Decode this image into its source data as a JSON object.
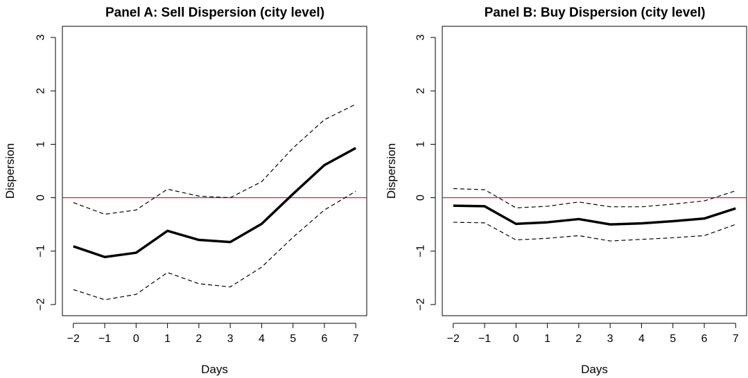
{
  "chart_data": [
    {
      "type": "line",
      "title": "Panel A: Sell Dispersion (city level)",
      "xlabel": "Days",
      "ylabel": "Dispersion",
      "x": [
        -2,
        -1,
        0,
        1,
        2,
        3,
        4,
        5,
        6,
        7
      ],
      "x_tick_labels": [
        "−2",
        "−1",
        "0",
        "1",
        "2",
        "3",
        "4",
        "5",
        "6",
        "7"
      ],
      "y_tick_values": [
        -2,
        -1,
        0,
        1,
        2,
        3
      ],
      "y_tick_labels": [
        "−2",
        "−1",
        "0",
        "1",
        "2",
        "3"
      ],
      "xlim": [
        -2,
        7
      ],
      "ylim": [
        -2,
        3
      ],
      "reference_line": {
        "y": 0,
        "color": "#e01010"
      },
      "series": [
        {
          "style": "solid-thick",
          "color": "#000000",
          "values": [
            -0.91,
            -1.11,
            -1.03,
            -0.62,
            -0.79,
            -0.83,
            -0.49,
            0.07,
            0.61,
            0.93
          ]
        },
        {
          "style": "dashed",
          "color": "#000000",
          "values": [
            -0.09,
            -0.31,
            -0.23,
            0.16,
            0.03,
            0.0,
            0.3,
            0.93,
            1.46,
            1.75
          ]
        },
        {
          "style": "dashed",
          "color": "#000000",
          "values": [
            -1.72,
            -1.91,
            -1.81,
            -1.4,
            -1.61,
            -1.67,
            -1.3,
            -0.74,
            -0.23,
            0.12
          ]
        }
      ]
    },
    {
      "type": "line",
      "title": "Panel B: Buy Dispersion (city level)",
      "xlabel": "Days",
      "ylabel": "Dispersion",
      "x": [
        -2,
        -1,
        0,
        1,
        2,
        3,
        4,
        5,
        6,
        7
      ],
      "x_tick_labels": [
        "−2",
        "−1",
        "0",
        "1",
        "2",
        "3",
        "4",
        "5",
        "6",
        "7"
      ],
      "y_tick_values": [
        -2,
        -1,
        0,
        1,
        2,
        3
      ],
      "y_tick_labels": [
        "−2",
        "−1",
        "0",
        "1",
        "2",
        "3"
      ],
      "xlim": [
        -2,
        7
      ],
      "ylim": [
        -2,
        3
      ],
      "reference_line": {
        "y": 0,
        "color": "#e01010"
      },
      "series": [
        {
          "style": "solid-thick",
          "color": "#000000",
          "values": [
            -0.15,
            -0.16,
            -0.49,
            -0.46,
            -0.4,
            -0.5,
            -0.48,
            -0.44,
            -0.39,
            -0.2
          ]
        },
        {
          "style": "dashed",
          "color": "#000000",
          "values": [
            0.17,
            0.15,
            -0.19,
            -0.16,
            -0.08,
            -0.17,
            -0.17,
            -0.12,
            -0.06,
            0.13
          ]
        },
        {
          "style": "dashed",
          "color": "#000000",
          "values": [
            -0.46,
            -0.47,
            -0.79,
            -0.76,
            -0.71,
            -0.81,
            -0.78,
            -0.75,
            -0.71,
            -0.5
          ]
        }
      ]
    }
  ]
}
